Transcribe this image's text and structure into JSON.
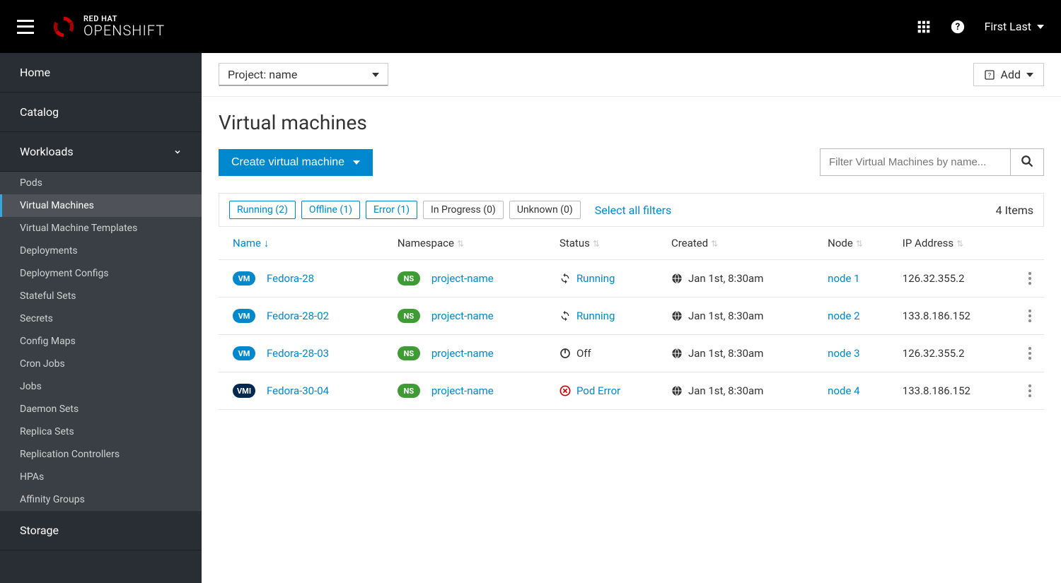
{
  "topbar": {
    "brand": "RED HAT",
    "product": "OPENSHIFT",
    "user": "First Last"
  },
  "sidebar": {
    "sections": [
      {
        "label": "Home",
        "expandable": false
      },
      {
        "label": "Catalog",
        "expandable": false
      },
      {
        "label": "Workloads",
        "expandable": true,
        "expanded": true,
        "items": [
          {
            "label": "Pods"
          },
          {
            "label": "Virtual Machines",
            "active": true
          },
          {
            "label": "Virtual Machine Templates"
          },
          {
            "label": "Deployments"
          },
          {
            "label": "Deployment Configs"
          },
          {
            "label": "Stateful Sets"
          },
          {
            "label": "Secrets"
          },
          {
            "label": "Config Maps"
          },
          {
            "label": "Cron Jobs"
          },
          {
            "label": "Jobs"
          },
          {
            "label": "Daemon Sets"
          },
          {
            "label": "Replica Sets"
          },
          {
            "label": "Replication Controllers"
          },
          {
            "label": "HPAs"
          },
          {
            "label": "Affinity Groups"
          }
        ]
      },
      {
        "label": "Storage",
        "expandable": false
      }
    ]
  },
  "toolbar": {
    "project_label": "Project: name",
    "add_label": "Add"
  },
  "page": {
    "title": "Virtual machines",
    "create_label": "Create virtual machine",
    "search_placeholder": "Filter Virtual Machines by name...",
    "select_all": "Select all filters",
    "item_count": "4 Items"
  },
  "filters": [
    {
      "label": "Running (2)",
      "active": true
    },
    {
      "label": "Offline (1)",
      "active": true
    },
    {
      "label": "Error (1)",
      "active": true
    },
    {
      "label": "In Progress (0)",
      "active": false
    },
    {
      "label": "Unknown (0)",
      "active": false
    }
  ],
  "columns": {
    "name": "Name",
    "namespace": "Namespace",
    "status": "Status",
    "created": "Created",
    "node": "Node",
    "ip": "IP Address"
  },
  "rows": [
    {
      "badge": "VM",
      "badge_type": "vm",
      "name": "Fedora-28",
      "namespace": "project-name",
      "status": "Running",
      "status_type": "running",
      "created": "Jan 1st, 8:30am",
      "node": "node 1",
      "ip": "126.32.355.2"
    },
    {
      "badge": "VM",
      "badge_type": "vm",
      "name": "Fedora-28-02",
      "namespace": "project-name",
      "status": "Running",
      "status_type": "running",
      "created": "Jan 1st, 8:30am",
      "node": "node 2",
      "ip": "133.8.186.152"
    },
    {
      "badge": "VM",
      "badge_type": "vm",
      "name": "Fedora-28-03",
      "namespace": "project-name",
      "status": "Off",
      "status_type": "off",
      "created": "Jan 1st, 8:30am",
      "node": "node 3",
      "ip": "126.32.355.2"
    },
    {
      "badge": "VMI",
      "badge_type": "vmi",
      "name": "Fedora-30-04",
      "namespace": "project-name",
      "status": "Pod Error",
      "status_type": "error",
      "created": "Jan 1st, 8:30am",
      "node": "node 4",
      "ip": "133.8.186.152"
    }
  ],
  "colors": {
    "link": "#0088ce",
    "sidebar_bg": "#292e34",
    "sidebar_sub_bg": "#393f44",
    "badge_vm": "#0088ce",
    "badge_vmi": "#002952",
    "badge_ns": "#3f9c35",
    "error": "#cc0000"
  }
}
